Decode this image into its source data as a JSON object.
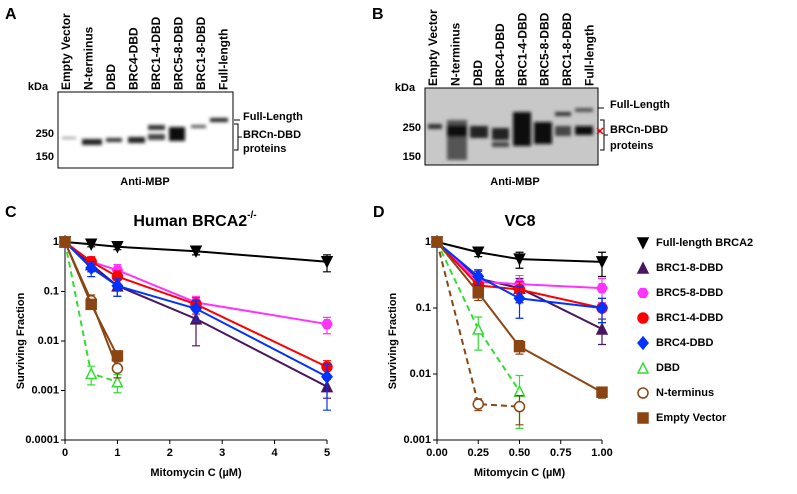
{
  "blots": [
    {
      "panel": "A",
      "lanes": [
        "Empty Vector",
        "N-terminus",
        "DBD",
        "BRC4-DBD",
        "BRC1-4-DBD",
        "BRC5-8-DBD",
        "BRC1-8-DBD",
        "Full-length"
      ],
      "kda_label": "kDa",
      "markers": [
        250,
        150
      ],
      "band_labels": [
        "Full-Length",
        "BRCn-DBD",
        "proteins"
      ],
      "antibody": "Anti-MBP"
    },
    {
      "panel": "B",
      "lanes": [
        "Empty Vector",
        "N-terminus",
        "DBD",
        "BRC4-DBD",
        "BRC1-4-DBD",
        "BRC5-8-DBD",
        "BRC1-8-DBD",
        "Full-length"
      ],
      "kda_label": "kDa",
      "markers": [
        250,
        150
      ],
      "band_labels": [
        "Full-Length",
        "BRCn-DBD",
        "proteins"
      ],
      "antibody": "Anti-MBP"
    }
  ],
  "chart_data": [
    {
      "type": "line",
      "panel": "C",
      "title": "Human BRCA2",
      "title_superscript": "-/-",
      "xlabel": "Mitomycin C (µM)",
      "ylabel": "Surviving Fraction",
      "xlim": [
        0,
        5
      ],
      "xticks": [
        0,
        1,
        2,
        3,
        4,
        5
      ],
      "ylim": [
        0.0001,
        1
      ],
      "yticks": [
        0.0001,
        0.001,
        0.01,
        0.1,
        1
      ],
      "ylog": true,
      "series": [
        {
          "color": "#000000",
          "marker": "triangle-down",
          "x": [
            0,
            0.5,
            1,
            2.5,
            5
          ],
          "values": [
            1,
            0.9,
            0.8,
            0.65,
            0.4
          ],
          "errors": [
            0,
            0.1,
            0.1,
            0.1,
            0.15
          ]
        },
        {
          "color": "#4a1560",
          "marker": "triangle-up",
          "x": [
            0,
            0.5,
            1,
            2.5,
            5
          ],
          "values": [
            1,
            0.35,
            0.13,
            0.028,
            0.0012
          ],
          "errors": [
            0,
            0.1,
            0.05,
            0.02,
            0.0005
          ]
        },
        {
          "color": "#ff33ff",
          "marker": "hexagon",
          "x": [
            0,
            0.5,
            1,
            2.5,
            5
          ],
          "values": [
            1,
            0.4,
            0.27,
            0.06,
            0.022
          ],
          "errors": [
            0,
            0.1,
            0.08,
            0.02,
            0.008
          ]
        },
        {
          "color": "#ff0000",
          "marker": "circle",
          "x": [
            0,
            0.5,
            1,
            2.5,
            5
          ],
          "values": [
            1,
            0.4,
            0.2,
            0.055,
            0.003
          ],
          "errors": [
            0,
            0.1,
            0.06,
            0.02,
            0.001
          ]
        },
        {
          "color": "#0033ff",
          "marker": "diamond",
          "x": [
            0,
            0.5,
            1,
            2.5,
            5
          ],
          "values": [
            1,
            0.3,
            0.13,
            0.045,
            0.0019
          ],
          "errors": [
            0,
            0.1,
            0.05,
            0.02,
            0.0015
          ]
        },
        {
          "color": "#33dd33",
          "marker": "triangle-open",
          "dash": true,
          "x": [
            0,
            0.5,
            1
          ],
          "values": [
            1,
            0.0022,
            0.0015
          ],
          "errors": [
            0,
            0.0009,
            0.0006
          ]
        },
        {
          "color": "#8b4513",
          "marker": "circle-open",
          "x": [
            0,
            0.5,
            1
          ],
          "values": [
            1,
            0.065,
            0.0028
          ],
          "errors": [
            0,
            0.02,
            0.001
          ]
        },
        {
          "color": "#8b4513",
          "marker": "square",
          "x": [
            0,
            0.5,
            1
          ],
          "values": [
            1,
            0.055,
            0.005
          ],
          "errors": [
            0,
            0.01,
            0.001
          ]
        }
      ]
    },
    {
      "type": "line",
      "panel": "D",
      "title": "VC8",
      "xlabel": "Mitomycin C (µM)",
      "ylabel": "Surviving Fraction",
      "legend": "right",
      "xlim": [
        0,
        1
      ],
      "xticks": [
        {
          "value": 0,
          "label": "0.00"
        },
        {
          "value": 0.25,
          "label": "0.25"
        },
        {
          "value": 0.5,
          "label": "0.50"
        },
        {
          "value": 0.75,
          "label": "0.75"
        },
        {
          "value": 1,
          "label": "1.00"
        }
      ],
      "ylim": [
        0.001,
        1
      ],
      "yticks": [
        0.001,
        0.01,
        0.1,
        1
      ],
      "ylog": true,
      "series": [
        {
          "name": "Full-length BRCA2",
          "color": "#000000",
          "marker": "triangle-down",
          "x": [
            0,
            0.25,
            0.5,
            1
          ],
          "values": [
            1,
            0.7,
            0.55,
            0.5
          ],
          "errors": [
            0,
            0.1,
            0.15,
            0.2
          ]
        },
        {
          "name": "BRC1-8-DBD",
          "color": "#4a1560",
          "marker": "triangle-up",
          "x": [
            0,
            0.25,
            0.5,
            1
          ],
          "values": [
            1,
            0.28,
            0.2,
            0.048
          ],
          "errors": [
            0,
            0.08,
            0.08,
            0.02
          ]
        },
        {
          "name": "BRC5-8-DBD",
          "color": "#ff33ff",
          "marker": "hexagon",
          "x": [
            0,
            0.25,
            0.5,
            1
          ],
          "values": [
            1,
            0.25,
            0.23,
            0.2
          ],
          "errors": [
            0,
            0.08,
            0.08,
            0.08
          ]
        },
        {
          "name": "BRC1-4-DBD",
          "color": "#ff0000",
          "marker": "circle",
          "x": [
            0,
            0.25,
            0.5,
            1
          ],
          "values": [
            1,
            0.22,
            0.19,
            0.1
          ],
          "errors": [
            0,
            0.06,
            0.06,
            0.04
          ]
        },
        {
          "name": "BRC4-DBD",
          "color": "#0033ff",
          "marker": "diamond",
          "x": [
            0,
            0.25,
            0.5,
            1
          ],
          "values": [
            1,
            0.3,
            0.14,
            0.1
          ],
          "errors": [
            0,
            0.08,
            0.07,
            0.04
          ]
        },
        {
          "name": "DBD",
          "color": "#33dd33",
          "marker": "triangle-open",
          "dash": true,
          "x": [
            0,
            0.25,
            0.5
          ],
          "values": [
            1,
            0.048,
            0.0055
          ],
          "errors": [
            0,
            0.025,
            0.004
          ]
        },
        {
          "name": "N-terminus",
          "color": "#8b4513",
          "marker": "circle-open",
          "dash": true,
          "x": [
            0,
            0.25,
            0.5
          ],
          "values": [
            1,
            0.0035,
            0.0032
          ],
          "errors": [
            0,
            0.0007,
            0.0015
          ]
        },
        {
          "name": "Empty Vector",
          "color": "#8b4513",
          "marker": "square",
          "x": [
            0,
            0.25,
            0.5,
            1
          ],
          "values": [
            1,
            0.17,
            0.026,
            0.0053
          ],
          "errors": [
            0,
            0.04,
            0.006,
            0.001
          ]
        }
      ]
    }
  ]
}
